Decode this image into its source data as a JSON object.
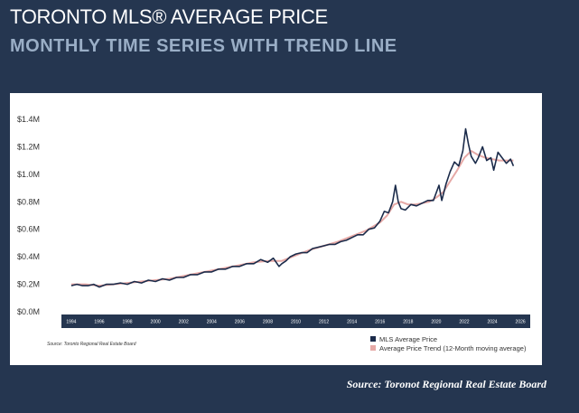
{
  "header": {
    "title": "TORONTO MLS® AVERAGE PRICE",
    "subtitle": "MONTHLY TIME SERIES WITH TREND LINE"
  },
  "footer": {
    "source": "Source: Toronot Regional Real Estate Board"
  },
  "colors": {
    "background": "#253650",
    "mls_line": "#1b2b4a",
    "trend_line": "#e6a9a6",
    "axis_band": "#253650"
  },
  "chart_data": {
    "type": "line",
    "source_note": "Source: Toronto Regional Real Estate Board",
    "legend_position": "bottom-right",
    "grid": false,
    "xlim": [
      1993.3,
      2026.7
    ],
    "ylim": [
      0,
      1.4
    ],
    "ytick_values": [
      0,
      0.2,
      0.4,
      0.6,
      0.8,
      1.0,
      1.2,
      1.4
    ],
    "yticks": [
      "$0.0M",
      "$0.2M",
      "$0.4M",
      "$0.6M",
      "$0.8M",
      "$1.0M",
      "$1.2M",
      "$1.4M"
    ],
    "xticks": [
      "1994",
      "1996",
      "1998",
      "2000",
      "2002",
      "2004",
      "2006",
      "2008",
      "2010",
      "2012",
      "2014",
      "2016",
      "2018",
      "2020",
      "2022",
      "2024",
      "2026"
    ],
    "series": [
      {
        "name": "MLS Average Price",
        "color": "#1b2b4a",
        "x": [
          1994.0,
          1994.4,
          1994.8,
          1995.2,
          1995.6,
          1996.0,
          1996.5,
          1997.0,
          1997.5,
          1998.0,
          1998.5,
          1999.0,
          1999.5,
          2000.0,
          2000.5,
          2001.0,
          2001.5,
          2002.0,
          2002.5,
          2003.0,
          2003.5,
          2004.0,
          2004.5,
          2005.0,
          2005.5,
          2006.0,
          2006.5,
          2007.0,
          2007.5,
          2008.0,
          2008.4,
          2008.8,
          2009.0,
          2009.3,
          2009.6,
          2010.0,
          2010.4,
          2010.8,
          2011.2,
          2011.6,
          2012.0,
          2012.4,
          2012.8,
          2013.2,
          2013.6,
          2014.0,
          2014.4,
          2014.8,
          2015.2,
          2015.6,
          2016.0,
          2016.3,
          2016.6,
          2016.9,
          2017.1,
          2017.3,
          2017.5,
          2017.8,
          2018.2,
          2018.6,
          2019.0,
          2019.4,
          2019.8,
          2020.2,
          2020.4,
          2020.7,
          2021.0,
          2021.3,
          2021.6,
          2021.9,
          2022.1,
          2022.3,
          2022.5,
          2022.8,
          2023.0,
          2023.3,
          2023.6,
          2023.9,
          2024.1,
          2024.4,
          2024.7,
          2025.0,
          2025.3,
          2025.5
        ],
        "values": [
          0.19,
          0.2,
          0.19,
          0.19,
          0.2,
          0.18,
          0.2,
          0.2,
          0.21,
          0.2,
          0.22,
          0.21,
          0.23,
          0.22,
          0.24,
          0.23,
          0.25,
          0.25,
          0.27,
          0.27,
          0.29,
          0.29,
          0.31,
          0.31,
          0.33,
          0.33,
          0.35,
          0.35,
          0.38,
          0.36,
          0.39,
          0.33,
          0.35,
          0.37,
          0.4,
          0.42,
          0.43,
          0.43,
          0.46,
          0.47,
          0.48,
          0.49,
          0.49,
          0.51,
          0.52,
          0.54,
          0.56,
          0.56,
          0.6,
          0.61,
          0.66,
          0.73,
          0.72,
          0.8,
          0.92,
          0.8,
          0.75,
          0.74,
          0.78,
          0.77,
          0.79,
          0.81,
          0.81,
          0.92,
          0.81,
          0.93,
          1.02,
          1.09,
          1.06,
          1.17,
          1.33,
          1.22,
          1.13,
          1.08,
          1.12,
          1.2,
          1.1,
          1.12,
          1.03,
          1.16,
          1.12,
          1.08,
          1.11,
          1.06
        ]
      },
      {
        "name": "Average Price Trend (12-Month moving average)",
        "color": "#e6a9a6",
        "x": [
          1994.0,
          1995.0,
          1996.0,
          1997.0,
          1998.0,
          1999.0,
          2000.0,
          2001.0,
          2002.0,
          2003.0,
          2004.0,
          2005.0,
          2006.0,
          2007.0,
          2008.0,
          2009.0,
          2010.0,
          2011.0,
          2012.0,
          2013.0,
          2014.0,
          2015.0,
          2016.0,
          2016.5,
          2017.0,
          2017.5,
          2018.0,
          2018.5,
          2019.0,
          2019.5,
          2020.0,
          2020.5,
          2021.0,
          2021.5,
          2022.0,
          2022.5,
          2023.0,
          2023.5,
          2024.0,
          2024.5,
          2025.0,
          2025.5
        ],
        "values": [
          0.2,
          0.2,
          0.19,
          0.2,
          0.21,
          0.22,
          0.23,
          0.24,
          0.26,
          0.28,
          0.3,
          0.32,
          0.34,
          0.36,
          0.37,
          0.37,
          0.41,
          0.45,
          0.48,
          0.51,
          0.55,
          0.59,
          0.65,
          0.7,
          0.78,
          0.8,
          0.78,
          0.78,
          0.79,
          0.8,
          0.83,
          0.87,
          0.95,
          1.03,
          1.12,
          1.17,
          1.14,
          1.12,
          1.11,
          1.1,
          1.1,
          1.1
        ]
      }
    ]
  }
}
